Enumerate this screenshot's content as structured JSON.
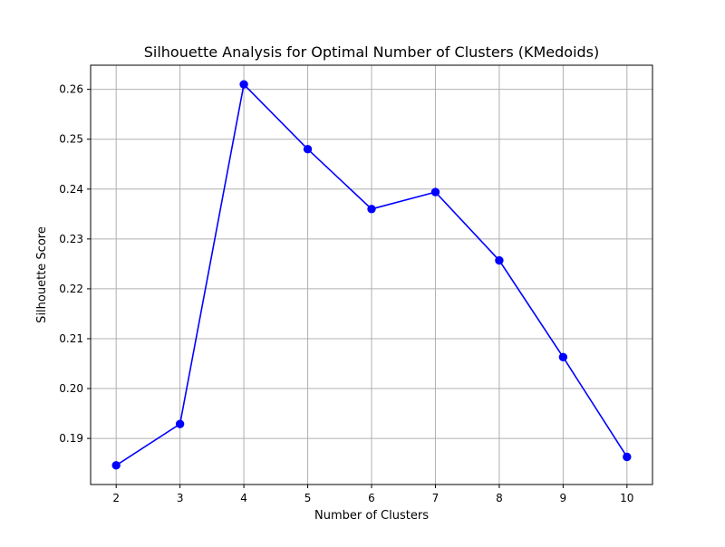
{
  "chart_data": {
    "type": "line",
    "title": "Silhouette Analysis for Optimal Number of Clusters (KMedoids)",
    "xlabel": "Number of Clusters",
    "ylabel": "Silhouette Score",
    "x": [
      2,
      3,
      4,
      5,
      6,
      7,
      8,
      9,
      10
    ],
    "series": [
      {
        "values": [
          0.1846,
          0.1929,
          0.261,
          0.248,
          0.236,
          0.2394,
          0.2257,
          0.2063,
          0.1863
        ],
        "color": "#0000ff",
        "marker": "circle"
      }
    ],
    "xticks": [
      "2",
      "3",
      "4",
      "5",
      "6",
      "7",
      "8",
      "9",
      "10"
    ],
    "yticks": [
      "0.19",
      "0.20",
      "0.21",
      "0.22",
      "0.23",
      "0.24",
      "0.25",
      "0.26"
    ],
    "ytick_values": [
      0.19,
      0.2,
      0.21,
      0.22,
      0.23,
      0.24,
      0.25,
      0.26
    ],
    "xlim": [
      1.6,
      10.4
    ],
    "ylim": [
      0.18076,
      0.26484
    ],
    "grid": true,
    "grid_color": "#b0b0b0"
  }
}
